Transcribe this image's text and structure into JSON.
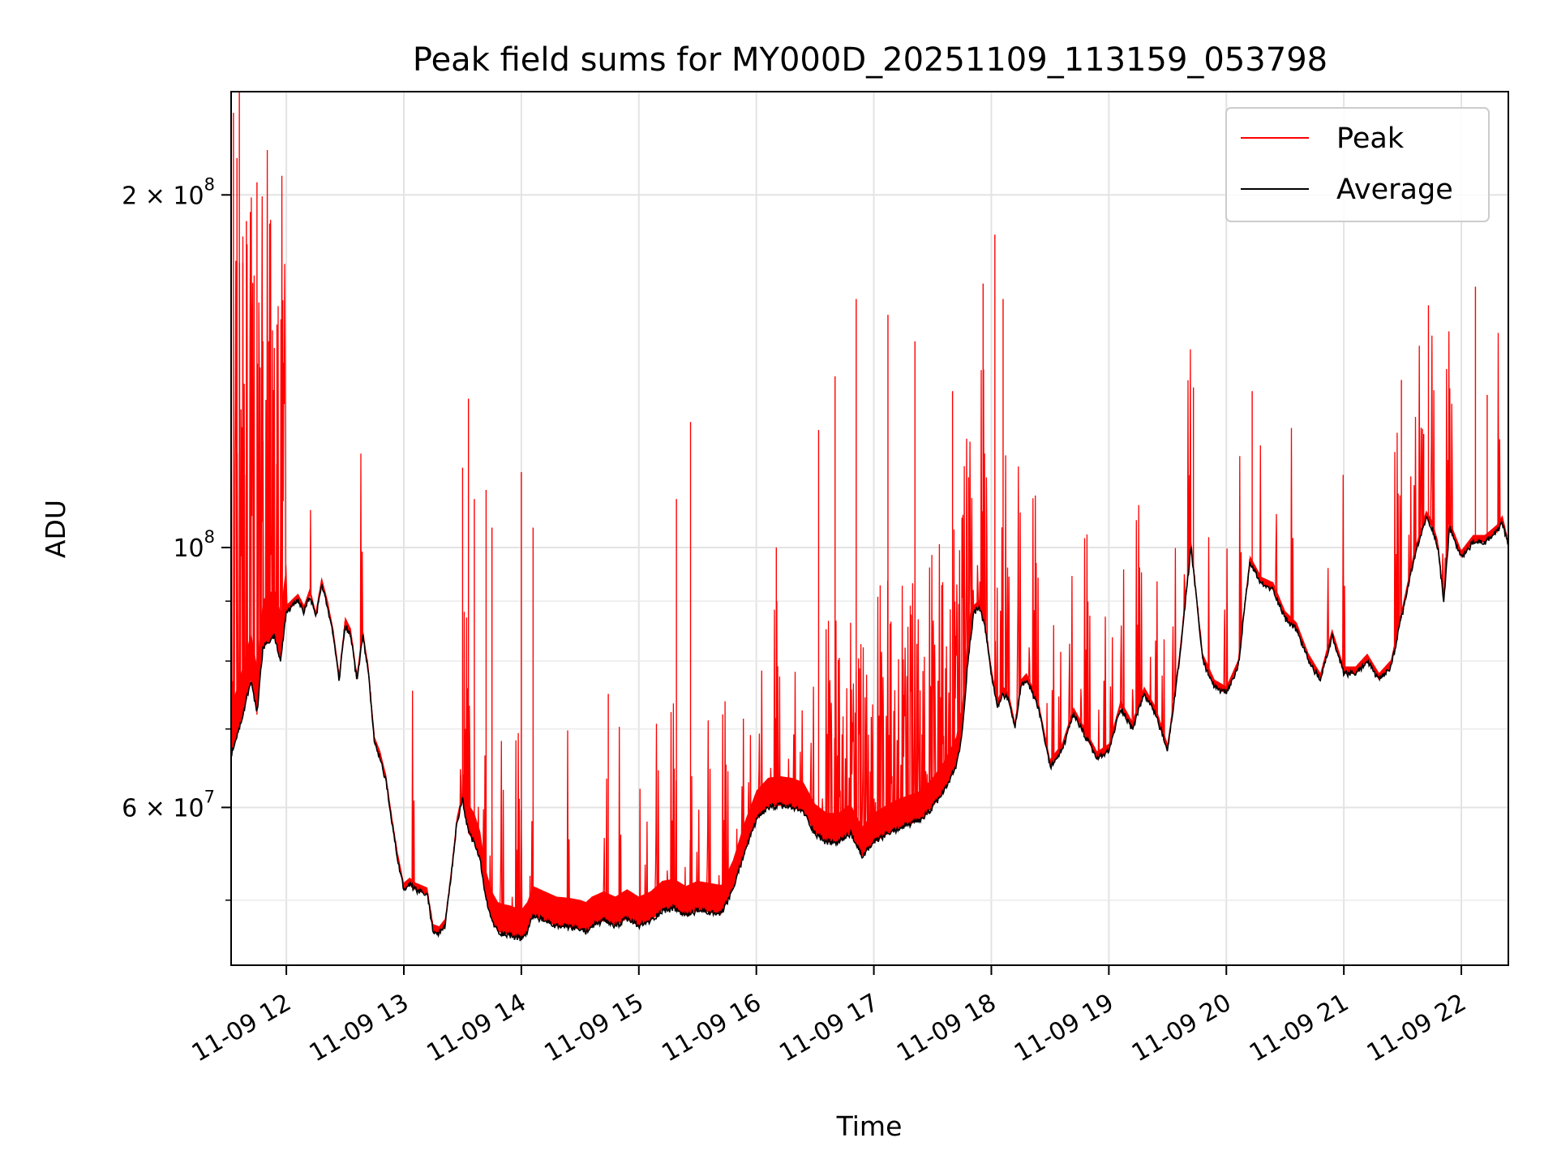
{
  "chart_data": {
    "type": "line",
    "title": "Peak field sums for MY000D_20251109_113159_053798",
    "xlabel": "Time",
    "ylabel": "ADU",
    "yscale": "log",
    "xlim_hours": [
      11.53,
      22.4
    ],
    "ylim": [
      44000000,
      245000000
    ],
    "grid": true,
    "legend_position": "upper right",
    "x_ticks": [
      {
        "value": 12,
        "label": "11-09 12"
      },
      {
        "value": 13,
        "label": "11-09 13"
      },
      {
        "value": 14,
        "label": "11-09 14"
      },
      {
        "value": 15,
        "label": "11-09 15"
      },
      {
        "value": 16,
        "label": "11-09 16"
      },
      {
        "value": 17,
        "label": "11-09 17"
      },
      {
        "value": 18,
        "label": "11-09 18"
      },
      {
        "value": 19,
        "label": "11-09 19"
      },
      {
        "value": 20,
        "label": "11-09 20"
      },
      {
        "value": 21,
        "label": "11-09 21"
      },
      {
        "value": 22,
        "label": "11-09 22"
      }
    ],
    "y_major_ticks": [
      {
        "value": 60000000,
        "base": "6 × 10",
        "exp": "7"
      },
      {
        "value": 100000000,
        "base": "10",
        "exp": "8"
      },
      {
        "value": 200000000,
        "base": "2 × 10",
        "exp": "8"
      }
    ],
    "y_minor_ticks": [
      50000000,
      70000000,
      80000000,
      90000000
    ],
    "series": [
      {
        "name": "Average",
        "color": "#000000",
        "x": [
          11.53,
          11.6,
          11.7,
          11.75,
          11.8,
          11.9,
          11.95,
          12.0,
          12.1,
          12.15,
          12.2,
          12.25,
          12.3,
          12.35,
          12.4,
          12.45,
          12.5,
          12.55,
          12.6,
          12.65,
          12.7,
          12.75,
          12.8,
          12.85,
          12.9,
          12.95,
          13.0,
          13.05,
          13.1,
          13.2,
          13.25,
          13.3,
          13.35,
          13.4,
          13.45,
          13.5,
          13.55,
          13.6,
          13.65,
          13.7,
          13.75,
          13.8,
          13.85,
          13.9,
          13.95,
          14.0,
          14.05,
          14.1,
          14.2,
          14.3,
          14.4,
          14.5,
          14.55,
          14.6,
          14.7,
          14.8,
          14.9,
          15.0,
          15.1,
          15.2,
          15.3,
          15.4,
          15.5,
          15.6,
          15.7,
          15.8,
          15.9,
          16.0,
          16.1,
          16.2,
          16.3,
          16.4,
          16.5,
          16.6,
          16.7,
          16.8,
          16.9,
          17.0,
          17.1,
          17.2,
          17.3,
          17.4,
          17.5,
          17.6,
          17.7,
          17.75,
          17.8,
          17.85,
          17.9,
          17.95,
          18.0,
          18.05,
          18.1,
          18.15,
          18.2,
          18.25,
          18.3,
          18.4,
          18.5,
          18.6,
          18.7,
          18.8,
          18.9,
          19.0,
          19.1,
          19.2,
          19.3,
          19.4,
          19.5,
          19.6,
          19.7,
          19.8,
          19.9,
          20.0,
          20.1,
          20.2,
          20.3,
          20.4,
          20.5,
          20.6,
          20.7,
          20.8,
          20.9,
          21.0,
          21.1,
          21.2,
          21.3,
          21.4,
          21.5,
          21.6,
          21.7,
          21.75,
          21.8,
          21.85,
          21.9,
          22.0,
          22.1,
          22.2,
          22.3,
          22.35,
          22.4
        ],
        "values": [
          66500000,
          70000000,
          77000000,
          72000000,
          82000000,
          84000000,
          80000000,
          88000000,
          90000000,
          88000000,
          91000000,
          87000000,
          93000000,
          89000000,
          84000000,
          77000000,
          86000000,
          84000000,
          77000000,
          84000000,
          78000000,
          68000000,
          66000000,
          63000000,
          58000000,
          54000000,
          51000000,
          51500000,
          51000000,
          50500000,
          47000000,
          46800000,
          47500000,
          52000000,
          58000000,
          61000000,
          57000000,
          56000000,
          54000000,
          50000000,
          48000000,
          47000000,
          46800000,
          46700000,
          46500000,
          46300000,
          47000000,
          48500000,
          48000000,
          47500000,
          47400000,
          47200000,
          47000000,
          47500000,
          48000000,
          47500000,
          48200000,
          47500000,
          48000000,
          49000000,
          49200000,
          48500000,
          49000000,
          48800000,
          48600000,
          51000000,
          55000000,
          58500000,
          60000000,
          60200000,
          60000000,
          59500000,
          57000000,
          56000000,
          56000000,
          57000000,
          54500000,
          56000000,
          56800000,
          57500000,
          58000000,
          58500000,
          60000000,
          62000000,
          65000000,
          69000000,
          80000000,
          88000000,
          89000000,
          85000000,
          78000000,
          73000000,
          75000000,
          74000000,
          70000000,
          76000000,
          77000000,
          73000000,
          65000000,
          67000000,
          72000000,
          69000000,
          66000000,
          67000000,
          73000000,
          70000000,
          75000000,
          72000000,
          67000000,
          80000000,
          100000000,
          80000000,
          76000000,
          75000000,
          79000000,
          97000000,
          93000000,
          92000000,
          87000000,
          85000000,
          80000000,
          77000000,
          84000000,
          78000000,
          78000000,
          80000000,
          77000000,
          79000000,
          88000000,
          98000000,
          106000000,
          104000000,
          100000000,
          90000000,
          104000000,
          98000000,
          101000000,
          101000000,
          103000000,
          105000000,
          100000000
        ]
      },
      {
        "name": "Peak",
        "color": "#ff0000",
        "spikes": [
          {
            "x": 11.55,
            "y": 235000000
          },
          {
            "x": 11.58,
            "y": 215000000
          },
          {
            "x": 11.6,
            "y": 245000000
          },
          {
            "x": 11.63,
            "y": 175000000
          },
          {
            "x": 11.66,
            "y": 190000000
          },
          {
            "x": 11.7,
            "y": 165000000
          },
          {
            "x": 11.75,
            "y": 205000000
          },
          {
            "x": 11.8,
            "y": 150000000
          },
          {
            "x": 11.85,
            "y": 150000000
          },
          {
            "x": 11.92,
            "y": 155000000
          },
          {
            "x": 13.5,
            "y": 117000000
          },
          {
            "x": 13.55,
            "y": 134000000
          },
          {
            "x": 13.6,
            "y": 110000000
          },
          {
            "x": 13.7,
            "y": 112000000
          },
          {
            "x": 13.75,
            "y": 104000000
          },
          {
            "x": 14.0,
            "y": 116000000
          },
          {
            "x": 14.1,
            "y": 104000000
          },
          {
            "x": 14.74,
            "y": 75000000
          },
          {
            "x": 15.32,
            "y": 110000000
          },
          {
            "x": 15.44,
            "y": 128000000
          },
          {
            "x": 16.17,
            "y": 100000000
          },
          {
            "x": 16.53,
            "y": 126000000
          },
          {
            "x": 16.67,
            "y": 140000000
          },
          {
            "x": 16.85,
            "y": 163000000
          },
          {
            "x": 17.12,
            "y": 158000000
          },
          {
            "x": 17.35,
            "y": 150000000
          },
          {
            "x": 17.67,
            "y": 136000000
          },
          {
            "x": 17.93,
            "y": 168000000
          },
          {
            "x": 18.03,
            "y": 185000000
          },
          {
            "x": 18.1,
            "y": 163000000
          },
          {
            "x": 19.72,
            "y": 137000000
          },
          {
            "x": 20.22,
            "y": 136000000
          },
          {
            "x": 21.49,
            "y": 139000000
          },
          {
            "x": 21.68,
            "y": 125000000
          },
          {
            "x": 21.72,
            "y": 161000000
          },
          {
            "x": 22.12,
            "y": 167000000
          },
          {
            "x": 22.22,
            "y": 135000000
          }
        ]
      }
    ]
  }
}
